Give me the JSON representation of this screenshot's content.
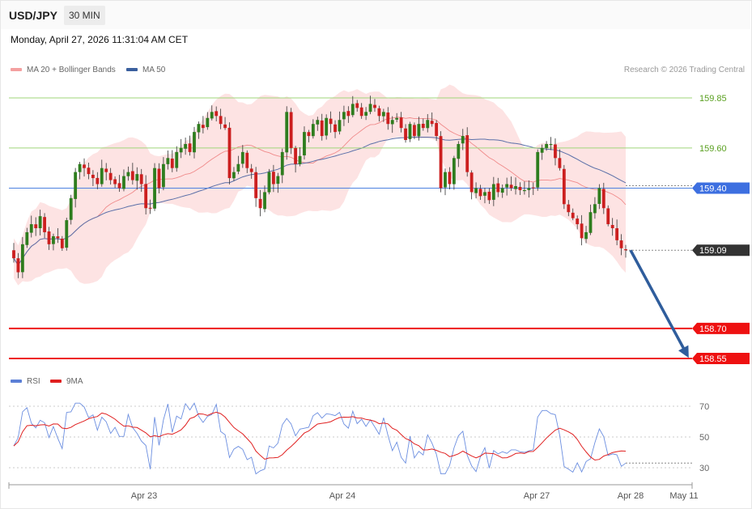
{
  "header": {
    "symbol": "USD/JPY",
    "timeframe": "30 MIN",
    "datetime": "Monday, April 27, 2026 11:31:04 AM CET",
    "copyright": "Research © 2026 Trading Central"
  },
  "legend": {
    "bollinger": {
      "label": "MA 20 + Bollinger Bands",
      "color": "#f08080"
    },
    "ma50": {
      "label": "MA 50",
      "color": "#3a5f9e"
    },
    "rsi": {
      "label": "RSI",
      "color": "#5b7fd6"
    },
    "ma9": {
      "label": "9MA",
      "color": "#e02020"
    }
  },
  "colors": {
    "up": "#2e7d1e",
    "down": "#cc1f1f",
    "band_fill": "#fde3e3",
    "resistance_line": "#9fd57a",
    "pivot_line": "#4d82e0",
    "support_line": "#ee1c1c",
    "arrow": "#2f5d9c"
  },
  "chart_data": [
    {
      "type": "candlestick",
      "ylim": [
        158.4,
        159.97
      ],
      "x_ticks": [
        "Apr 23",
        "Apr 24",
        "Apr 27",
        "Apr 28",
        "May 11"
      ],
      "levels": [
        {
          "value": 159.85,
          "label": "159.85",
          "kind": "resistance"
        },
        {
          "value": 159.6,
          "label": "159.60",
          "kind": "resistance"
        },
        {
          "value": 159.4,
          "label": "159.40",
          "kind": "pivot"
        },
        {
          "value": 159.09,
          "label": "159.09",
          "kind": "last"
        },
        {
          "value": 158.7,
          "label": "158.70",
          "kind": "support"
        },
        {
          "value": 158.55,
          "label": "158.55",
          "kind": "support"
        }
      ],
      "close": [
        159.05,
        158.98,
        159.12,
        159.18,
        159.22,
        159.2,
        159.26,
        159.18,
        159.12,
        159.16,
        159.15,
        159.1,
        159.24,
        159.35,
        159.48,
        159.52,
        159.5,
        159.47,
        159.45,
        159.42,
        159.5,
        159.48,
        159.44,
        159.42,
        159.4,
        159.46,
        159.48,
        159.44,
        159.47,
        159.42,
        159.3,
        159.3,
        159.5,
        159.4,
        159.52,
        159.55,
        159.5,
        159.58,
        159.6,
        159.62,
        159.58,
        159.68,
        159.72,
        159.7,
        159.75,
        159.78,
        159.76,
        159.72,
        159.7,
        159.45,
        159.48,
        159.52,
        159.58,
        159.5,
        159.48,
        159.35,
        159.3,
        159.38,
        159.48,
        159.42,
        159.46,
        159.58,
        159.78,
        159.6,
        159.52,
        159.56,
        159.68,
        159.66,
        159.72,
        159.74,
        159.66,
        159.75,
        159.72,
        159.68,
        159.74,
        159.78,
        159.76,
        159.82,
        159.8,
        159.76,
        159.78,
        159.82,
        159.8,
        159.76,
        159.78,
        159.72,
        159.74,
        159.75,
        159.7,
        159.64,
        159.72,
        159.66,
        159.72,
        159.7,
        159.74,
        159.72,
        159.66,
        159.4,
        159.48,
        159.42,
        159.55,
        159.62,
        159.66,
        159.48,
        159.38,
        159.4,
        159.36,
        159.38,
        159.34,
        159.42,
        159.38,
        159.4,
        159.42,
        159.4,
        159.41,
        159.39,
        159.39,
        159.4,
        159.4,
        159.58,
        159.6,
        159.62,
        159.62,
        159.55,
        159.5,
        159.32,
        159.28,
        159.25,
        159.22,
        159.15,
        159.18,
        159.28,
        159.32,
        159.4,
        159.3,
        159.22,
        159.2,
        159.14,
        159.1,
        159.09
      ],
      "rsi": {
        "ylim": [
          22,
          78
        ],
        "ticks": [
          70,
          50,
          30
        ],
        "last": 33
      }
    }
  ]
}
